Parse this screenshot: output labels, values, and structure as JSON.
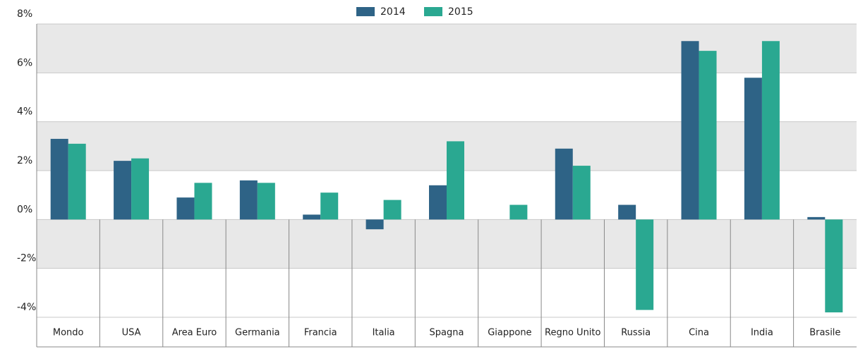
{
  "chart_data": {
    "type": "bar",
    "categories": [
      "Mondo",
      "USA",
      "Area Euro",
      "Germania",
      "Francia",
      "Italia",
      "Spagna",
      "Giappone",
      "Regno Unito",
      "Russia",
      "Cina",
      "India",
      "Brasile"
    ],
    "series": [
      {
        "name": "2014",
        "color": "#2e6386",
        "values": [
          3.3,
          2.4,
          0.9,
          1.6,
          0.2,
          -0.4,
          1.4,
          0,
          2.9,
          0.6,
          7.3,
          5.8,
          0.1
        ]
      },
      {
        "name": "2015",
        "color": "#2aa891",
        "values": [
          3.1,
          2.5,
          1.5,
          1.5,
          1.1,
          0.8,
          3.2,
          0.6,
          2.2,
          -3.7,
          6.9,
          7.3,
          -3.8
        ]
      }
    ],
    "ylim": [
      -4,
      8
    ],
    "yticks": [
      {
        "value": -4,
        "label": "-4%"
      },
      {
        "value": -2,
        "label": "-2%"
      },
      {
        "value": 0,
        "label": "0%"
      },
      {
        "value": 2,
        "label": "2%"
      },
      {
        "value": 4,
        "label": "4%"
      },
      {
        "value": 6,
        "label": "6%"
      },
      {
        "value": 8,
        "label": "8%"
      }
    ],
    "grid": true,
    "legend": "top"
  }
}
